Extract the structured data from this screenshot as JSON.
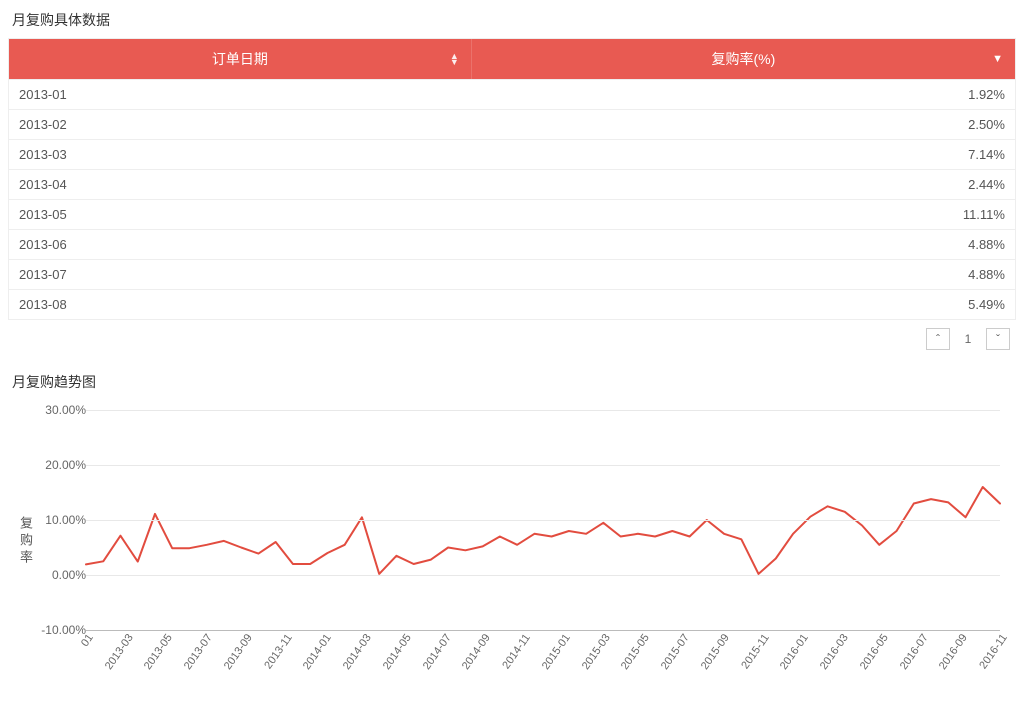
{
  "table": {
    "title": "月复购具体数据",
    "columns": {
      "date": "订单日期",
      "rate": "复购率(%)"
    },
    "rows": [
      {
        "date": "2013-01",
        "rate": "1.92%"
      },
      {
        "date": "2013-02",
        "rate": "2.50%"
      },
      {
        "date": "2013-03",
        "rate": "7.14%"
      },
      {
        "date": "2013-04",
        "rate": "2.44%"
      },
      {
        "date": "2013-05",
        "rate": "11.11%"
      },
      {
        "date": "2013-06",
        "rate": "4.88%"
      },
      {
        "date": "2013-07",
        "rate": "4.88%"
      },
      {
        "date": "2013-08",
        "rate": "5.49%"
      }
    ],
    "pager": {
      "current": "1"
    }
  },
  "chart": {
    "title": "月复购趋势图",
    "type": "line",
    "ylabel": "复购率",
    "ylim": [
      -10,
      30
    ],
    "yticks": [
      {
        "v": 30,
        "label": "30.00%"
      },
      {
        "v": 20,
        "label": "20.00%"
      },
      {
        "v": 10,
        "label": "10.00%"
      },
      {
        "v": 0,
        "label": "0.00%"
      },
      {
        "v": -10,
        "label": "-10.00%"
      }
    ],
    "x_labels": [
      "01",
      "2013-03",
      "2013-05",
      "2013-07",
      "2013-09",
      "2013-11",
      "2014-01",
      "2014-03",
      "2014-05",
      "2014-07",
      "2014-09",
      "2014-11",
      "2015-01",
      "2015-03",
      "2015-05",
      "2015-07",
      "2015-09",
      "2015-11",
      "2016-01",
      "2016-03",
      "2016-05",
      "2016-07",
      "2016-09",
      "2016-11"
    ],
    "values": [
      1.92,
      2.5,
      7.14,
      2.44,
      11.11,
      4.88,
      4.88,
      5.49,
      6.2,
      5.0,
      3.9,
      6.0,
      2.0,
      2.0,
      4.0,
      5.5,
      10.5,
      0.2,
      3.5,
      2.0,
      2.8,
      5.0,
      4.5,
      5.2,
      7.0,
      5.5,
      7.5,
      7.0,
      8.0,
      7.5,
      9.5,
      7.0,
      7.5,
      7.0,
      8.0,
      7.0,
      10.0,
      7.5,
      6.5,
      0.2,
      3.0,
      7.5,
      10.6,
      12.5,
      11.5,
      9.0,
      5.5,
      8.0,
      13.0,
      13.8,
      13.2,
      10.5,
      16.0,
      13.0
    ],
    "line_color": "#e24c3f",
    "line_width": 2,
    "grid_color": "#e8e8e8",
    "axis_color": "#bbbbbb",
    "background_color": "#ffffff",
    "label_fontsize": 12
  },
  "colors": {
    "header_bg": "#e85a52",
    "header_fg": "#ffffff",
    "row_border": "#eeeeee",
    "text": "#555555"
  }
}
